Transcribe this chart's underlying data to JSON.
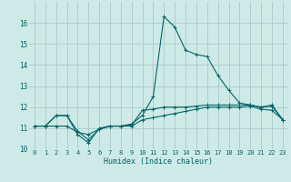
{
  "xlabel": "Humidex (Indice chaleur)",
  "background_color": "#ceeae6",
  "grid_color": "#b0cece",
  "line_color": "#006666",
  "xlim": [
    -0.5,
    23.5
  ],
  "ylim": [
    10,
    17
  ],
  "yticks": [
    10,
    11,
    12,
    13,
    14,
    15,
    16
  ],
  "xticks": [
    0,
    1,
    2,
    3,
    4,
    5,
    6,
    7,
    8,
    9,
    10,
    11,
    12,
    13,
    14,
    15,
    16,
    17,
    18,
    19,
    20,
    21,
    22,
    23
  ],
  "series": [
    {
      "x": [
        0,
        1,
        2,
        3,
        4,
        5,
        6,
        7,
        8,
        9,
        10,
        11,
        12,
        13,
        14,
        15,
        16,
        17,
        18,
        19,
        20,
        21,
        22,
        23
      ],
      "y": [
        11.1,
        11.1,
        11.6,
        11.6,
        10.7,
        10.3,
        11.0,
        11.1,
        11.1,
        11.2,
        11.6,
        12.5,
        16.3,
        15.8,
        14.7,
        14.5,
        14.4,
        13.5,
        12.8,
        12.2,
        12.1,
        12.0,
        12.1,
        11.4
      ]
    },
    {
      "x": [
        0,
        1,
        2,
        3,
        4,
        5,
        6,
        7,
        8,
        9,
        10,
        11,
        12,
        13,
        14,
        15,
        16,
        17,
        18,
        19,
        20,
        21,
        22,
        23
      ],
      "y": [
        11.1,
        11.1,
        11.6,
        11.6,
        10.85,
        10.45,
        10.95,
        11.1,
        11.1,
        11.15,
        11.85,
        11.9,
        12.0,
        12.0,
        12.0,
        12.05,
        12.1,
        12.1,
        12.1,
        12.1,
        12.1,
        12.0,
        12.05,
        11.4
      ]
    },
    {
      "x": [
        0,
        1,
        2,
        3,
        4,
        5,
        6,
        7,
        8,
        9,
        10,
        11,
        12,
        13,
        14,
        15,
        16,
        17,
        18,
        19,
        20,
        21,
        22,
        23
      ],
      "y": [
        11.1,
        11.1,
        11.1,
        11.1,
        10.8,
        10.7,
        10.95,
        11.1,
        11.1,
        11.1,
        11.4,
        11.5,
        11.6,
        11.7,
        11.8,
        11.9,
        12.0,
        12.0,
        12.0,
        12.0,
        12.05,
        11.9,
        11.85,
        11.4
      ]
    }
  ]
}
